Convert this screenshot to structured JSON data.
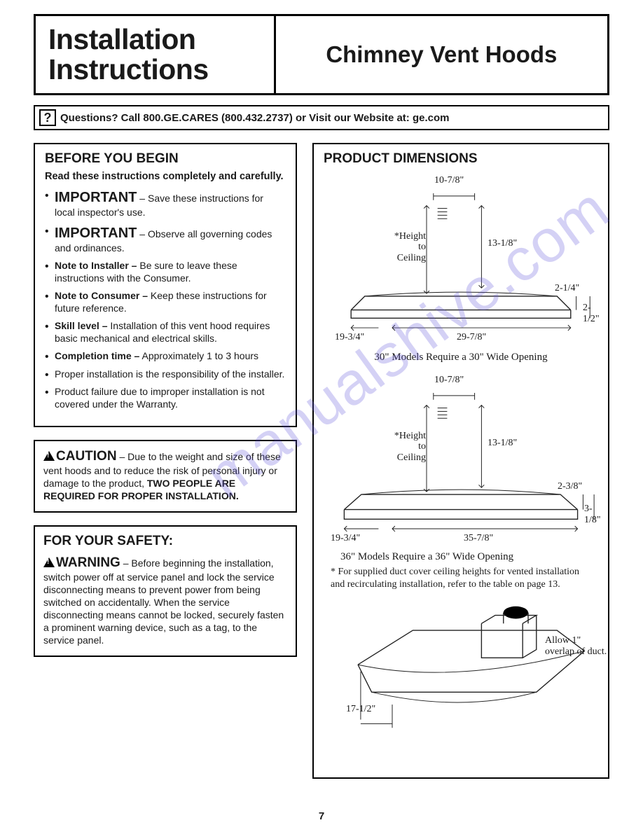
{
  "title": {
    "left_line1": "Installation",
    "left_line2": "Instructions",
    "right": "Chimney Vent Hoods"
  },
  "questions": {
    "icon": "?",
    "text": "Questions? Call 800.GE.CARES (800.432.2737) or Visit our Website at: ge.com"
  },
  "before": {
    "heading": "BEFORE YOU BEGIN",
    "sub": "Read these instructions completely and carefully.",
    "items": [
      {
        "lead": "IMPORTANT",
        "lead_class": "imp",
        "sep": " – ",
        "text": "Save these instructions for local inspector's use."
      },
      {
        "lead": "IMPORTANT",
        "lead_class": "imp",
        "sep": " – ",
        "text": "Observe all governing codes and ordinances."
      },
      {
        "lead": "Note to Installer –",
        "lead_class": "b",
        "sep": " ",
        "text": "Be sure to leave these instructions with the Consumer."
      },
      {
        "lead": "Note to Consumer –",
        "lead_class": "b",
        "sep": " ",
        "text": "Keep these instructions for future reference."
      },
      {
        "lead": "Skill level –",
        "lead_class": "b",
        "sep": " ",
        "text": "Installation of this vent hood requires basic mechanical and electrical skills."
      },
      {
        "lead": "Completion time –",
        "lead_class": "b",
        "sep": " ",
        "text": "Approximately 1 to 3 hours"
      },
      {
        "lead": "",
        "lead_class": "",
        "sep": "",
        "text": "Proper installation is the responsibility of the installer."
      },
      {
        "lead": "",
        "lead_class": "",
        "sep": "",
        "text": "Product failure due to improper installation is not covered under the Warranty."
      }
    ]
  },
  "caution": {
    "heading": "CAUTION",
    "body_pre": " – Due to the weight and size of these vent hoods and to reduce the risk of personal injury or damage to the product, ",
    "body_bold": "TWO PEOPLE ARE REQUIRED FOR PROPER INSTALLATION."
  },
  "safety": {
    "heading": "FOR YOUR SAFETY:",
    "warn": "WARNING",
    "body": " – Before beginning the installation, switch power off at service panel and lock the service disconnecting means to prevent power from being switched on accidentally. When the service disconnecting means cannot be locked, securely fasten a prominent warning device, such as a tag, to the service panel."
  },
  "dimensions": {
    "heading": "PRODUCT DIMENSIONS",
    "fig1": {
      "top_w": "10-7/8\"",
      "height_label": "*Height to Ceiling",
      "chimney_h": "13-1/8\"",
      "right_small": "2-1/4\"",
      "right_big": "2-1/2\"",
      "depth": "19-3/4\"",
      "width": "29-7/8\"",
      "caption": "30\" Models Require a 30\" Wide Opening"
    },
    "fig2": {
      "top_w": "10-7/8\"",
      "height_label": "*Height to Ceiling",
      "chimney_h": "13-1/8\"",
      "right_small": "2-3/8\"",
      "right_big": "3-1/8\"",
      "depth": "19-3/4\"",
      "width": "35-7/8\"",
      "caption": "36\" Models Require a 36\" Wide Opening"
    },
    "footnote": "* For supplied duct cover ceiling heights for vented installation and recirculating installation, refer to the table on page 13.",
    "fig3": {
      "overlap": "Allow 1\" overlap of duct.",
      "depth": "17-1/2\""
    }
  },
  "watermark": "manualshive.com",
  "page": "7",
  "colors": {
    "text": "#1a1a1a",
    "border": "#000000",
    "watermark": "rgba(100,90,220,0.28)",
    "bg": "#ffffff"
  }
}
